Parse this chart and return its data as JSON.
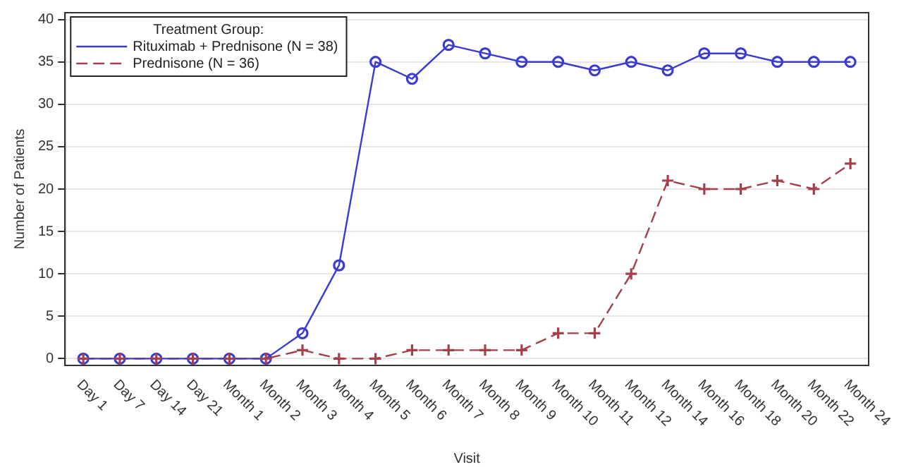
{
  "chart_data": {
    "type": "line",
    "xlabel": "Visit",
    "ylabel": "Number of Patients",
    "legend_title": "Treatment Group:",
    "categories": [
      "Day 1",
      "Day 7",
      "Day 14",
      "Day 21",
      "Month 1",
      "Month 2",
      "Month 3",
      "Month 4",
      "Month 5",
      "Month 6",
      "Month 7",
      "Month 8",
      "Month 9",
      "Month 10",
      "Month 11",
      "Month 12",
      "Month 14",
      "Month 16",
      "Month 18",
      "Month 20",
      "Month 22",
      "Month 24"
    ],
    "series": [
      {
        "name": "Rituximab + Prednisone (N = 38)",
        "color": "#3b3bd0",
        "marker": "circle",
        "line_style": "solid",
        "values": [
          0,
          0,
          0,
          0,
          0,
          0,
          3,
          11,
          35,
          33,
          37,
          36,
          35,
          35,
          34,
          35,
          34,
          36,
          36,
          35,
          35,
          35
        ]
      },
      {
        "name": "Prednisone (N = 36)",
        "color": "#a3404c",
        "marker": "cross",
        "line_style": "dashed",
        "values": [
          0,
          0,
          0,
          0,
          0,
          0,
          1,
          0,
          0,
          1,
          1,
          1,
          1,
          3,
          3,
          10,
          21,
          20,
          20,
          21,
          20,
          23
        ]
      }
    ],
    "ylim": [
      -0.8,
      40.8
    ],
    "yticks": [
      0,
      5,
      10,
      15,
      20,
      25,
      30,
      35,
      40
    ],
    "grid": "y",
    "legend": "top left"
  }
}
